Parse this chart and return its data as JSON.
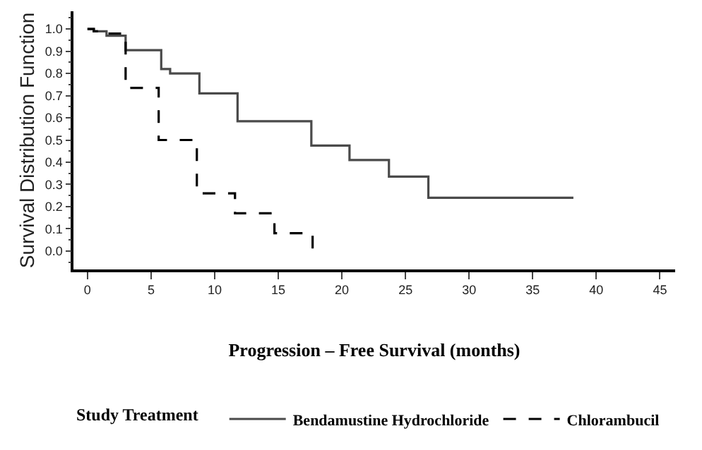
{
  "chart_data": {
    "type": "step",
    "xlabel": "Progression – Free Survival (months)",
    "ylabel": "Survival Distribution Function",
    "legend_title": "Study Treatment",
    "xlim": [
      -1.1,
      46.2
    ],
    "ylim": [
      -0.083,
      1.08
    ],
    "xticks": [
      0,
      5,
      10,
      15,
      20,
      25,
      30,
      35,
      40,
      45
    ],
    "yticks": [
      {
        "value": 0,
        "label": "0.0"
      },
      0.1,
      0.2,
      0.3,
      0.4,
      0.5,
      0.6,
      0.7,
      0.8,
      0.9,
      {
        "value": 1,
        "label": "1.0"
      }
    ],
    "legend": "bottom",
    "marker": "none",
    "series": [
      {
        "name": "Bendamustine Hydrochloride",
        "color": "#4a4a4a",
        "line_style": "solid",
        "x": [
          0,
          0.5,
          1.5,
          2.8,
          3.0,
          5.6,
          5.8,
          6.5,
          8.6,
          8.8,
          11.6,
          11.8,
          17.6,
          20.6,
          23.7,
          26.8,
          38.2
        ],
        "values": [
          1.0,
          0.99,
          0.97,
          0.97,
          0.905,
          0.905,
          0.82,
          0.8,
          0.8,
          0.71,
          0.71,
          0.585,
          0.475,
          0.41,
          0.335,
          0.24,
          0.24
        ]
      },
      {
        "name": "Chlorambucil",
        "color": "#000000",
        "line_style": "dashed",
        "x": [
          0,
          0.5,
          1.2,
          3.0,
          5.6,
          8.6,
          11.6,
          14.7,
          17.7,
          17.7
        ],
        "values": [
          1.0,
          0.99,
          0.98,
          0.735,
          0.5,
          0.26,
          0.17,
          0.08,
          0.08,
          0.0
        ]
      }
    ]
  }
}
